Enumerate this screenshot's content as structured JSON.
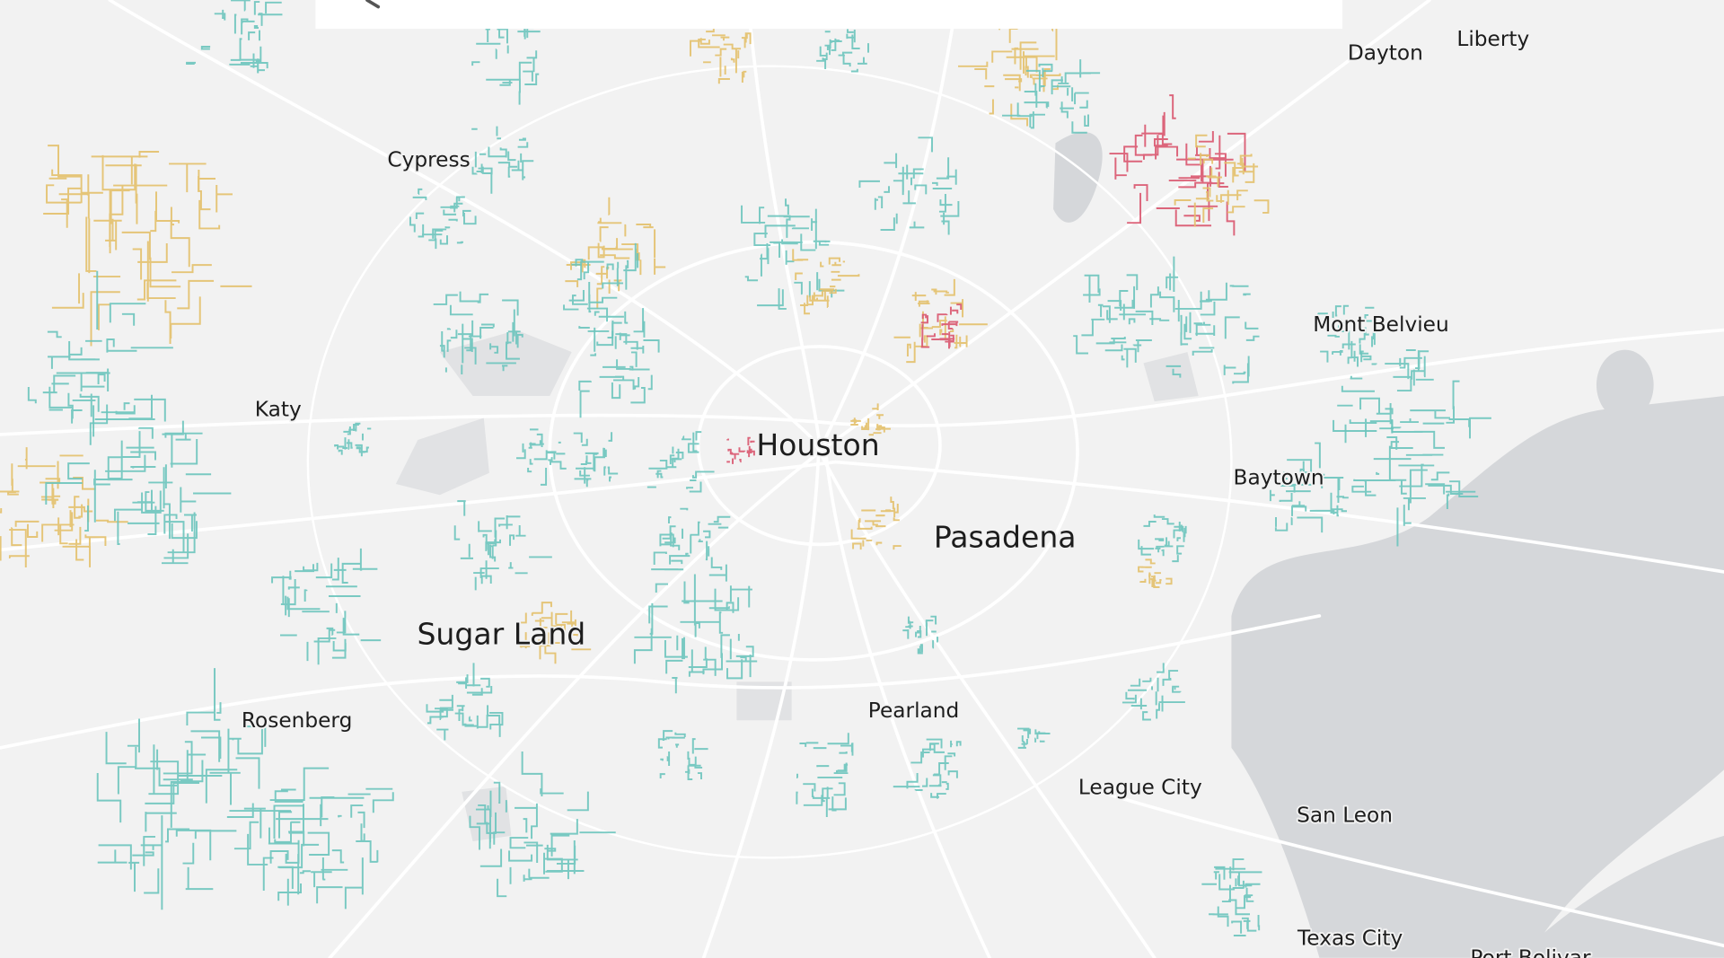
{
  "places": [
    {
      "label": "Dayton"
    },
    {
      "label": "Liberty"
    },
    {
      "label": "Cypress"
    },
    {
      "label": "Katy"
    },
    {
      "label": "Mont Belvieu"
    },
    {
      "label": "Houston"
    },
    {
      "label": "Baytown"
    },
    {
      "label": "Pasadena"
    },
    {
      "label": "Sugar Land"
    },
    {
      "label": "Rosenberg"
    },
    {
      "label": "Pearland"
    },
    {
      "label": "League City"
    },
    {
      "label": "San Leon"
    },
    {
      "label": "Texas City"
    },
    {
      "label": "Port Bolivar"
    }
  ]
}
